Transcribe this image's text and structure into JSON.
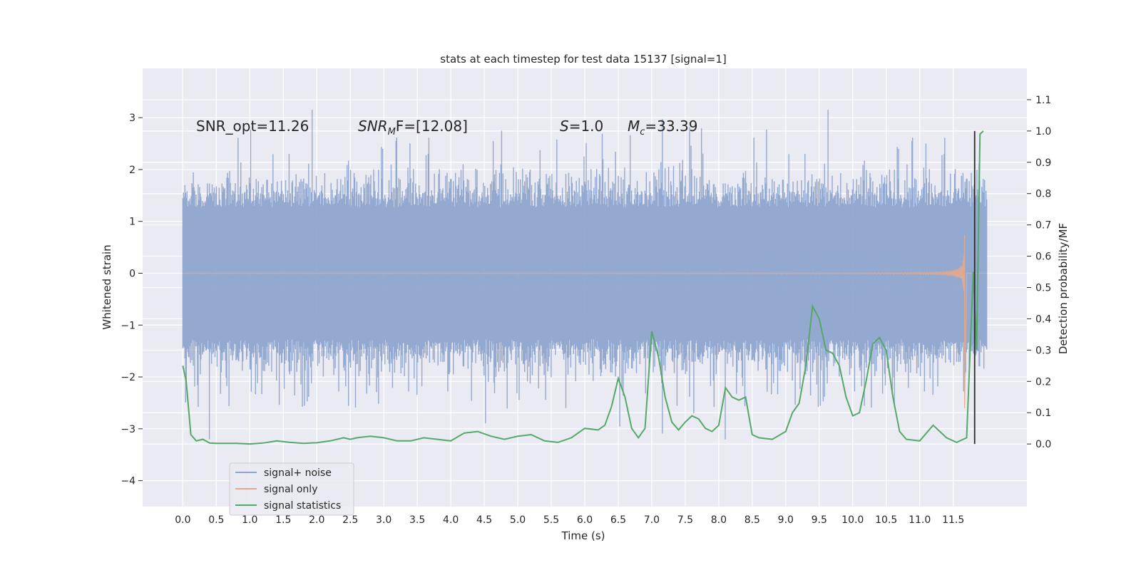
{
  "chart_data": {
    "type": "line",
    "title": "stats at each timestep for test data 15137 [signal=1]",
    "xlabel": "Time (s)",
    "ylabel": "Whitened strain",
    "ylabel_right": "Detection probability/MF",
    "xlim": [
      -0.6,
      12.6
    ],
    "ylim": [
      -4.5,
      3.95
    ],
    "ylim_right": [
      -0.2,
      1.2
    ],
    "x_ticks": [
      "0.0",
      "0.5",
      "1.0",
      "1.5",
      "2.0",
      "2.5",
      "3.0",
      "3.5",
      "4.0",
      "4.5",
      "5.0",
      "5.5",
      "6.0",
      "6.5",
      "7.0",
      "7.5",
      "8.0",
      "8.5",
      "9.0",
      "9.5",
      "10.0",
      "10.5",
      "11.0",
      "11.5"
    ],
    "y_ticks": [
      "3",
      "2",
      "1",
      "0",
      "−1",
      "−2",
      "−3",
      "−4"
    ],
    "y_ticks_right": [
      "1.1",
      "1.0",
      "0.9",
      "0.8",
      "0.7",
      "0.6",
      "0.5",
      "0.4",
      "0.3",
      "0.2",
      "0.1",
      "0.0"
    ],
    "grid": true,
    "legend_position": "lower-left",
    "annotations": {
      "snr_opt": "SNR_opt=11.26",
      "snr_mf_main": "SNR",
      "snr_mf_sub": "M",
      "snr_mf_rest": "F=[12.08]",
      "s_var": "S",
      "s_rest": "=1.0",
      "mc_var": "M",
      "mc_sub": "c",
      "mc_rest": "=33.39"
    },
    "series": [
      {
        "name": "signal+ noise",
        "color": "#8fa5ce",
        "envelope_max": 3.6,
        "envelope_min": -4.1,
        "typical_band": [
          -1.5,
          1.5
        ]
      },
      {
        "name": "signal only",
        "color": "#dd8452",
        "peak_time": 11.65,
        "peak_amplitude": 2.3
      },
      {
        "name": "signal statistics",
        "color": "#55a868",
        "x": [
          0.0,
          0.05,
          0.12,
          0.2,
          0.3,
          0.4,
          0.5,
          0.6,
          0.8,
          1.0,
          1.2,
          1.4,
          1.6,
          1.8,
          2.0,
          2.2,
          2.4,
          2.5,
          2.6,
          2.8,
          3.0,
          3.2,
          3.4,
          3.6,
          3.8,
          4.0,
          4.2,
          4.4,
          4.6,
          4.8,
          5.0,
          5.2,
          5.4,
          5.6,
          5.8,
          6.0,
          6.2,
          6.3,
          6.4,
          6.5,
          6.6,
          6.7,
          6.8,
          6.9,
          7.0,
          7.1,
          7.2,
          7.3,
          7.4,
          7.5,
          7.6,
          7.7,
          7.8,
          7.9,
          8.0,
          8.1,
          8.2,
          8.3,
          8.4,
          8.5,
          8.6,
          8.8,
          9.0,
          9.1,
          9.2,
          9.3,
          9.4,
          9.5,
          9.6,
          9.7,
          9.8,
          9.9,
          10.0,
          10.1,
          10.2,
          10.3,
          10.4,
          10.5,
          10.6,
          10.7,
          10.8,
          11.0,
          11.2,
          11.4,
          11.55,
          11.7,
          11.8,
          11.85,
          11.9,
          11.95
        ],
        "values": [
          0.25,
          0.2,
          0.03,
          0.01,
          0.015,
          0.003,
          0.002,
          0.002,
          0.002,
          0.0,
          0.003,
          0.01,
          0.005,
          0.002,
          0.004,
          0.01,
          0.02,
          0.015,
          0.02,
          0.025,
          0.02,
          0.01,
          0.01,
          0.02,
          0.015,
          0.01,
          0.035,
          0.04,
          0.025,
          0.015,
          0.025,
          0.03,
          0.01,
          0.005,
          0.02,
          0.05,
          0.045,
          0.06,
          0.12,
          0.21,
          0.15,
          0.05,
          0.02,
          0.05,
          0.36,
          0.28,
          0.15,
          0.07,
          0.045,
          0.07,
          0.09,
          0.08,
          0.05,
          0.04,
          0.06,
          0.18,
          0.15,
          0.14,
          0.15,
          0.03,
          0.02,
          0.015,
          0.04,
          0.1,
          0.13,
          0.25,
          0.44,
          0.4,
          0.3,
          0.29,
          0.25,
          0.15,
          0.09,
          0.1,
          0.2,
          0.32,
          0.34,
          0.3,
          0.15,
          0.04,
          0.015,
          0.01,
          0.06,
          0.02,
          0.005,
          0.02,
          0.55,
          0.3,
          0.99,
          1.0
        ]
      }
    ],
    "vline": {
      "x": 11.82,
      "color": "#2a2a2a"
    }
  }
}
